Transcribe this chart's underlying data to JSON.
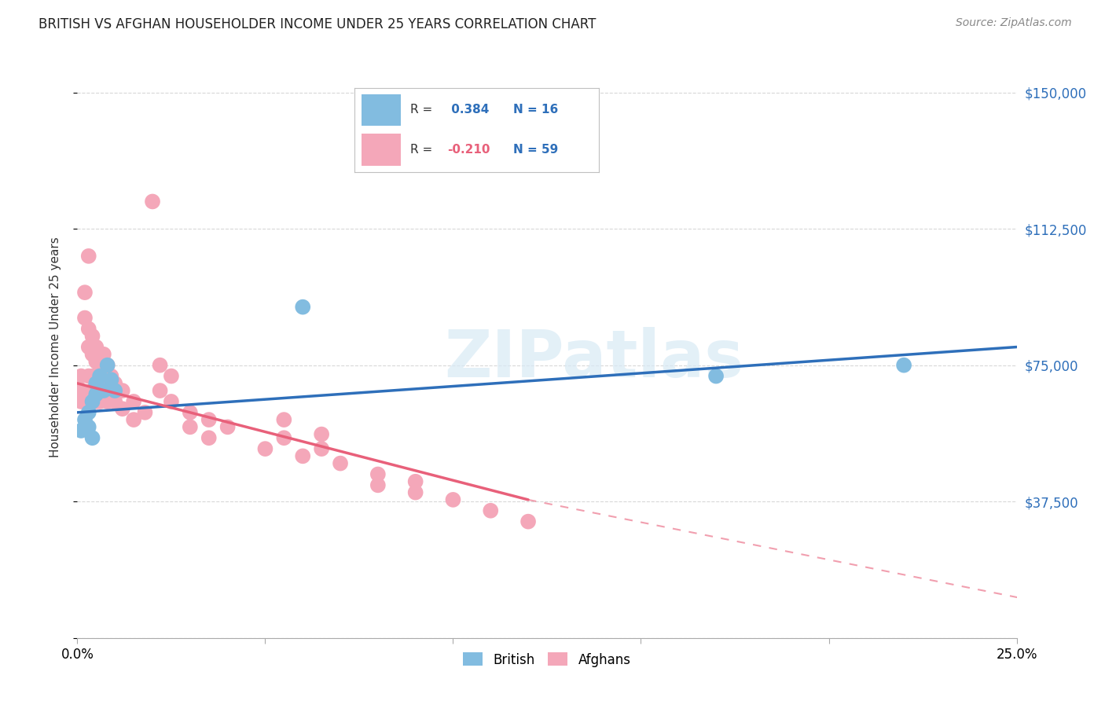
{
  "title": "BRITISH VS AFGHAN HOUSEHOLDER INCOME UNDER 25 YEARS CORRELATION CHART",
  "source": "Source: ZipAtlas.com",
  "ylabel": "Householder Income Under 25 years",
  "yticks": [
    0,
    37500,
    75000,
    112500,
    150000
  ],
  "ytick_labels": [
    "",
    "$37,500",
    "$75,000",
    "$112,500",
    "$150,000"
  ],
  "xlim": [
    0.0,
    0.25
  ],
  "ylim": [
    0,
    160000
  ],
  "british_R": 0.384,
  "british_N": 16,
  "afghan_R": -0.21,
  "afghan_N": 59,
  "british_color": "#82bce0",
  "afghan_color": "#f4a7b9",
  "british_line_color": "#2e6fba",
  "afghan_line_color": "#e8607a",
  "british_scatter": [
    [
      0.001,
      57000
    ],
    [
      0.002,
      60000
    ],
    [
      0.003,
      58000
    ],
    [
      0.003,
      62000
    ],
    [
      0.004,
      55000
    ],
    [
      0.004,
      65000
    ],
    [
      0.005,
      70000
    ],
    [
      0.005,
      67000
    ],
    [
      0.006,
      72000
    ],
    [
      0.007,
      68000
    ],
    [
      0.008,
      75000
    ],
    [
      0.009,
      71000
    ],
    [
      0.01,
      68000
    ],
    [
      0.06,
      91000
    ],
    [
      0.17,
      72000
    ],
    [
      0.22,
      75000
    ]
  ],
  "afghan_scatter": [
    [
      0.001,
      72000
    ],
    [
      0.001,
      68000
    ],
    [
      0.001,
      65000
    ],
    [
      0.002,
      95000
    ],
    [
      0.002,
      88000
    ],
    [
      0.003,
      105000
    ],
    [
      0.003,
      85000
    ],
    [
      0.003,
      80000
    ],
    [
      0.003,
      72000
    ],
    [
      0.004,
      83000
    ],
    [
      0.004,
      78000
    ],
    [
      0.004,
      72000
    ],
    [
      0.004,
      68000
    ],
    [
      0.005,
      80000
    ],
    [
      0.005,
      76000
    ],
    [
      0.005,
      70000
    ],
    [
      0.005,
      65000
    ],
    [
      0.006,
      75000
    ],
    [
      0.006,
      70000
    ],
    [
      0.006,
      65000
    ],
    [
      0.007,
      78000
    ],
    [
      0.007,
      72000
    ],
    [
      0.007,
      68000
    ],
    [
      0.008,
      75000
    ],
    [
      0.008,
      70000
    ],
    [
      0.008,
      65000
    ],
    [
      0.009,
      72000
    ],
    [
      0.009,
      68000
    ],
    [
      0.01,
      70000
    ],
    [
      0.01,
      65000
    ],
    [
      0.012,
      68000
    ],
    [
      0.012,
      63000
    ],
    [
      0.015,
      65000
    ],
    [
      0.015,
      60000
    ],
    [
      0.018,
      62000
    ],
    [
      0.02,
      120000
    ],
    [
      0.022,
      75000
    ],
    [
      0.022,
      68000
    ],
    [
      0.025,
      72000
    ],
    [
      0.025,
      65000
    ],
    [
      0.03,
      62000
    ],
    [
      0.03,
      58000
    ],
    [
      0.035,
      60000
    ],
    [
      0.035,
      55000
    ],
    [
      0.04,
      58000
    ],
    [
      0.05,
      52000
    ],
    [
      0.055,
      60000
    ],
    [
      0.055,
      55000
    ],
    [
      0.06,
      50000
    ],
    [
      0.065,
      56000
    ],
    [
      0.065,
      52000
    ],
    [
      0.07,
      48000
    ],
    [
      0.08,
      45000
    ],
    [
      0.08,
      42000
    ],
    [
      0.09,
      43000
    ],
    [
      0.09,
      40000
    ],
    [
      0.1,
      38000
    ],
    [
      0.11,
      35000
    ],
    [
      0.12,
      32000
    ]
  ],
  "watermark_text": "ZIPatlas",
  "grid_color": "#d8d8d8",
  "legend_british_label": "British",
  "legend_afghan_label": "Afghans"
}
